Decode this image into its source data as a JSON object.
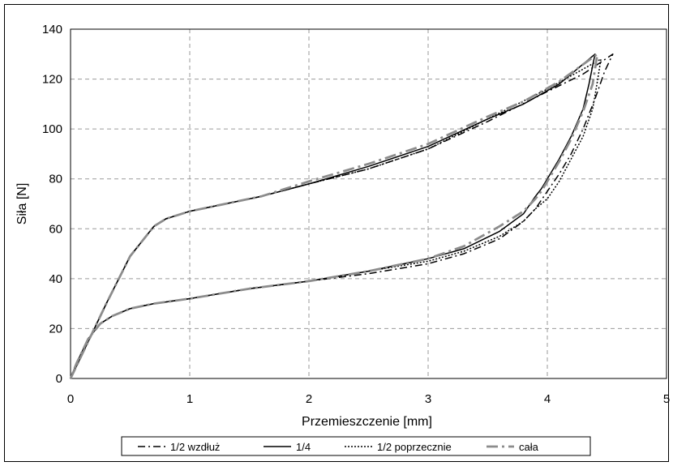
{
  "chart_data": {
    "type": "line",
    "xlabel": "Przemieszczenie [mm]",
    "ylabel": "Siła [N]",
    "xlim": [
      0,
      5
    ],
    "ylim": [
      0,
      140
    ],
    "x_ticks": [
      "0",
      "1",
      "2",
      "3",
      "4",
      "5"
    ],
    "y_ticks": [
      "0",
      "20",
      "40",
      "60",
      "80",
      "100",
      "120",
      "140"
    ],
    "grid": true,
    "legend_position": "bottom",
    "series": [
      {
        "name": "1/2 wzdłuż",
        "color": "#000000",
        "style": "dash-dot",
        "x": [
          0,
          0.1,
          0.2,
          0.3,
          0.5,
          0.7,
          0.8,
          1.0,
          1.3,
          1.6,
          2.0,
          2.5,
          3.0,
          3.5,
          4.0,
          4.3,
          4.55,
          4.48,
          4.4,
          4.3,
          4.2,
          4.1,
          4.0,
          3.9,
          3.8,
          3.6,
          3.3,
          3.0,
          2.5,
          2.0,
          1.5,
          1.0,
          0.7,
          0.5,
          0.35,
          0.25,
          0.15,
          0.05,
          0
        ],
        "y": [
          0,
          10,
          20,
          30,
          49,
          61,
          64,
          67,
          70,
          73,
          78,
          84,
          92,
          103,
          115,
          122,
          130,
          123,
          112,
          100,
          90,
          82,
          75,
          68,
          63,
          56,
          50,
          46,
          42,
          39,
          36,
          32,
          30,
          28,
          25,
          22,
          16,
          6,
          0
        ]
      },
      {
        "name": "1/4",
        "color": "#000000",
        "style": "solid",
        "x": [
          0,
          0.1,
          0.2,
          0.3,
          0.5,
          0.7,
          0.8,
          1.0,
          1.3,
          1.6,
          2.0,
          2.5,
          3.0,
          3.5,
          3.8,
          4.1,
          4.4,
          4.35,
          4.3,
          4.2,
          4.1,
          4.0,
          3.95,
          3.9,
          3.8,
          3.6,
          3.3,
          3.0,
          2.5,
          2.0,
          1.5,
          1.0,
          0.7,
          0.5,
          0.35,
          0.25,
          0.15,
          0.05,
          0
        ],
        "y": [
          0,
          10,
          20,
          30,
          49,
          61,
          64,
          67,
          70,
          73,
          78,
          85,
          93,
          104,
          110,
          118,
          130,
          118,
          108,
          97,
          88,
          80,
          76,
          73,
          66,
          59,
          52,
          48,
          43,
          39,
          36,
          32,
          30,
          28,
          25,
          22,
          16,
          6,
          0
        ]
      },
      {
        "name": "1/2 poprzecznie",
        "color": "#000000",
        "style": "dotted",
        "x": [
          0,
          0.1,
          0.2,
          0.3,
          0.5,
          0.7,
          0.8,
          1.0,
          1.3,
          1.6,
          2.0,
          2.5,
          3.0,
          3.5,
          4.0,
          4.3,
          4.45,
          4.42,
          4.38,
          4.3,
          4.2,
          4.1,
          4.0,
          3.9,
          3.8,
          3.6,
          3.3,
          3.0,
          2.5,
          2.0,
          1.5,
          1.0,
          0.7,
          0.5,
          0.35,
          0.25,
          0.15,
          0.05,
          0
        ],
        "y": [
          0,
          10,
          20,
          30,
          49,
          61,
          64,
          67,
          70,
          73,
          78,
          84,
          92,
          104,
          116,
          124,
          128,
          119,
          108,
          97,
          88,
          79,
          72,
          68,
          63,
          57,
          51,
          47,
          43,
          39,
          36,
          32,
          30,
          28,
          25,
          22,
          16,
          6,
          0
        ]
      },
      {
        "name": "cała",
        "color": "#8c8c8c",
        "style": "dash-dot",
        "x": [
          0,
          0.1,
          0.2,
          0.3,
          0.5,
          0.7,
          0.8,
          1.0,
          1.3,
          1.6,
          2.0,
          2.5,
          3.0,
          3.5,
          3.8,
          4.1,
          4.42,
          4.38,
          4.3,
          4.2,
          4.1,
          4.0,
          3.95,
          3.9,
          3.8,
          3.6,
          3.3,
          3.0,
          2.5,
          2.0,
          1.5,
          1.0,
          0.7,
          0.5,
          0.35,
          0.25,
          0.15,
          0.05,
          0
        ],
        "y": [
          0,
          10,
          20,
          30,
          49,
          61,
          64,
          67,
          70,
          73,
          79,
          86,
          94,
          105,
          111,
          119,
          130,
          118,
          107,
          96,
          87,
          79,
          75,
          72,
          67,
          61,
          53,
          48,
          43,
          39,
          36,
          32,
          30,
          28,
          25,
          22,
          16,
          6,
          0
        ]
      }
    ]
  }
}
